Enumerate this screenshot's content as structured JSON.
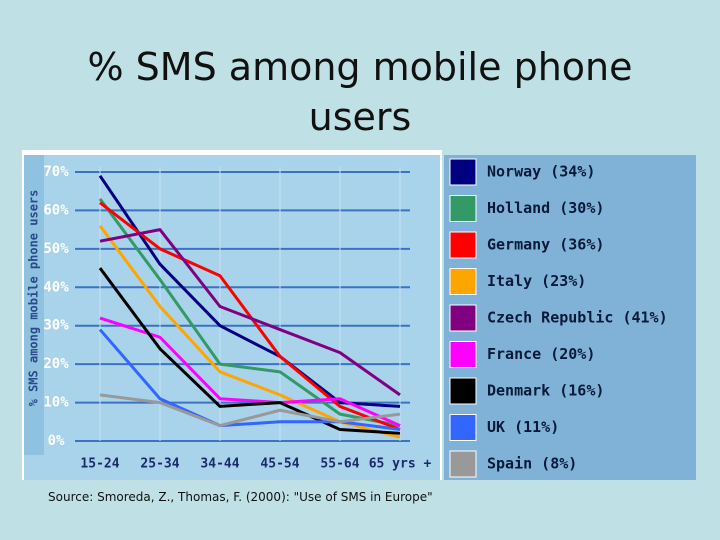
{
  "chart_data": {
    "type": "line",
    "title": "% SMS among mobile phone users",
    "ylabel": "% SMS among mobile phone users",
    "source": "Source: Smoreda, Z., Thomas, F. (2000): \"Use of SMS in Europe\"",
    "categories": [
      "15-24",
      "25-34",
      "34-44",
      "45-54",
      "55-64",
      "65 yrs +"
    ],
    "ylim": [
      0,
      70
    ],
    "yticks": [
      {
        "value": 0,
        "label": "0%"
      },
      {
        "value": 10,
        "label": "10%"
      },
      {
        "value": 20,
        "label": "20%"
      },
      {
        "value": 30,
        "label": "30%"
      },
      {
        "value": 40,
        "label": "40%"
      },
      {
        "value": 50,
        "label": "50%"
      },
      {
        "value": 60,
        "label": "60%"
      },
      {
        "value": 70,
        "label": "70%"
      }
    ],
    "grid": true,
    "legend": "right",
    "series": [
      {
        "name": "Norway (34%)",
        "color": "#000080",
        "values": [
          69,
          46,
          30,
          22,
          10,
          9
        ]
      },
      {
        "name": "Holland (30%)",
        "color": "#339966",
        "values": [
          63,
          42,
          20,
          18,
          7,
          4
        ]
      },
      {
        "name": "Germany (36%)",
        "color": "#ff0000",
        "values": [
          62,
          50,
          43,
          22,
          9,
          3
        ]
      },
      {
        "name": "Italy (23%)",
        "color": "#ffa500",
        "values": [
          56,
          35,
          18,
          12,
          5,
          1
        ]
      },
      {
        "name": "Czech Republic (41%)",
        "color": "#800080",
        "values": [
          52,
          55,
          35,
          29,
          23,
          12
        ]
      },
      {
        "name": "France (20%)",
        "color": "#ff00ff",
        "values": [
          32,
          27,
          11,
          10,
          11,
          4
        ]
      },
      {
        "name": "Denmark (16%)",
        "color": "#000000",
        "values": [
          45,
          24,
          9,
          10,
          3,
          2
        ]
      },
      {
        "name": "UK (11%)",
        "color": "#3366ff",
        "values": [
          29,
          11,
          4,
          5,
          5,
          3
        ]
      },
      {
        "name": "Spain (8%)",
        "color": "#999999",
        "values": [
          12,
          10,
          4,
          8,
          5,
          7
        ]
      }
    ]
  }
}
